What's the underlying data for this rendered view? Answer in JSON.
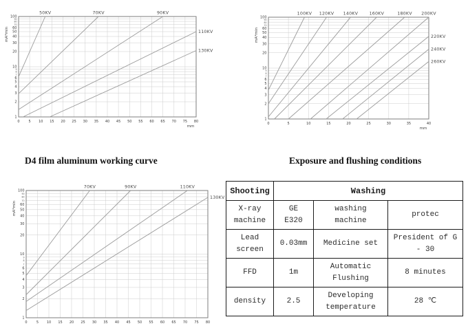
{
  "captions": {
    "left": "D4 film aluminum working curve",
    "right": "Exposure and flushing conditions"
  },
  "colors": {
    "curve": "#9b9b9b",
    "grid": "#cccccc",
    "frame": "#7c7c7c",
    "text": "#2b2b2b"
  },
  "chart_data": [
    {
      "type": "line",
      "id": "d4-aluminum-working-curve-top-left",
      "title": "",
      "xlabel": "mm",
      "ylabel": "mA*min",
      "xlim": [
        0,
        80
      ],
      "xstep": 5,
      "ylim": [
        1,
        100
      ],
      "yscale": "log",
      "grid": true,
      "series": [
        {
          "name": "50KV",
          "label_pos": "top",
          "points": [
            [
              0,
              6.3
            ],
            [
              12,
              100
            ]
          ]
        },
        {
          "name": "70KV",
          "label_pos": "top",
          "points": [
            [
              0,
              2.9
            ],
            [
              36,
              100
            ]
          ]
        },
        {
          "name": "90KV",
          "label_pos": "top",
          "points": [
            [
              0,
              1.4
            ],
            [
              65,
              100
            ]
          ]
        },
        {
          "name": "110KV",
          "label_pos": "right",
          "points": [
            [
              2,
              1
            ],
            [
              80,
              50
            ]
          ]
        },
        {
          "name": "130KV",
          "label_pos": "right",
          "points": [
            [
              14,
              1
            ],
            [
              80,
              21
            ]
          ]
        }
      ]
    },
    {
      "type": "line",
      "id": "exposure-curve-top-right",
      "title": "",
      "xlabel": "mm",
      "ylabel": "mA*min",
      "xlim": [
        0,
        40
      ],
      "xstep": 5,
      "ylim": [
        1,
        100
      ],
      "yscale": "log",
      "grid": true,
      "series": [
        {
          "name": "100KV",
          "label_pos": "top",
          "points": [
            [
              0,
              3.7
            ],
            [
              9,
              100
            ]
          ]
        },
        {
          "name": "120KV",
          "label_pos": "top",
          "points": [
            [
              0,
              2.0
            ],
            [
              14.5,
              100
            ]
          ]
        },
        {
          "name": "140KV",
          "label_pos": "top",
          "points": [
            [
              0,
              1.1
            ],
            [
              20.5,
              100
            ]
          ]
        },
        {
          "name": "160KV",
          "label_pos": "top",
          "points": [
            [
              1.5,
              1
            ],
            [
              27,
              100
            ]
          ]
        },
        {
          "name": "180KV",
          "label_pos": "top",
          "points": [
            [
              5,
              1
            ],
            [
              34,
              100
            ]
          ]
        },
        {
          "name": "200KV",
          "label_pos": "top",
          "points": [
            [
              10.5,
              1
            ],
            [
              40,
              100
            ]
          ]
        },
        {
          "name": "220KV",
          "label_pos": "right",
          "points": [
            [
              14.4,
              1
            ],
            [
              40,
              42
            ]
          ]
        },
        {
          "name": "240KV",
          "label_pos": "right",
          "points": [
            [
              18.5,
              1
            ],
            [
              40,
              23.5
            ]
          ]
        },
        {
          "name": "260KV",
          "label_pos": "right",
          "points": [
            [
              22,
              1
            ],
            [
              40,
              13.5
            ]
          ]
        }
      ]
    },
    {
      "type": "line",
      "id": "working-curve-bottom-left",
      "title": "",
      "xlabel": "mm",
      "ylabel": "mA*min",
      "xlim": [
        0,
        80
      ],
      "xstep": 5,
      "ylim": [
        1,
        100
      ],
      "yscale": "log",
      "grid": true,
      "series": [
        {
          "name": "70KV",
          "label_pos": "top",
          "points": [
            [
              0,
              4.6
            ],
            [
              28,
              100
            ]
          ]
        },
        {
          "name": "90KV",
          "label_pos": "top",
          "points": [
            [
              0,
              2.3
            ],
            [
              46,
              100
            ]
          ]
        },
        {
          "name": "110KV",
          "label_pos": "top",
          "points": [
            [
              0,
              1.8
            ],
            [
              71,
              100
            ]
          ]
        },
        {
          "name": "130KV",
          "label_pos": "right",
          "points": [
            [
              0,
              1.3
            ],
            [
              80,
              78
            ]
          ]
        }
      ]
    }
  ],
  "table": {
    "header": {
      "col1": "Shooting",
      "col2": "Washing"
    },
    "rows": [
      {
        "c1": "X-ray\nmachine",
        "c2": "GE\nE320",
        "c3": "washing\nmachine",
        "c4": "protec"
      },
      {
        "c1": "Lead\nscreen",
        "c2": "0.03mm",
        "c3": "Medicine set",
        "c4": "President of G\n- 30"
      },
      {
        "c1": "FFD",
        "c2": "1m",
        "c3": "Automatic\nFlushing",
        "c4": "8 minutes"
      },
      {
        "c1": "density",
        "c2": "2.5",
        "c3": "Developing\ntemperature",
        "c4": "28 ℃"
      }
    ]
  }
}
